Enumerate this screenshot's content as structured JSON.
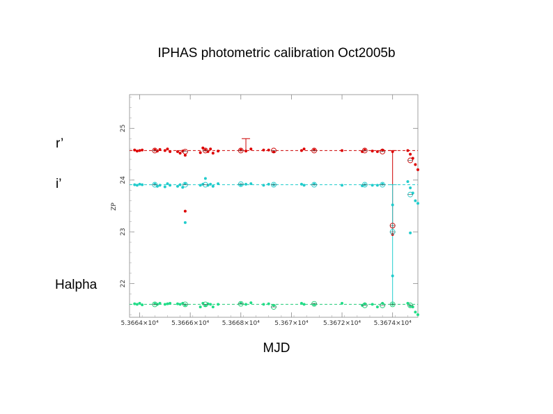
{
  "title": "IPHAS photometric calibration Oct2005b",
  "band_labels": {
    "r": "r’",
    "i": "i’",
    "halpha": "Halpha"
  },
  "xlabel": "MJD",
  "chart_data": {
    "type": "scatter",
    "title": "IPHAS photometric calibration Oct2005b",
    "xlabel": "MJD",
    "ylabel": "ZP",
    "xlim": [
      53663.6,
      53675.0
    ],
    "ylim": [
      21.35,
      25.65
    ],
    "x_ticks": [
      53664,
      53666,
      53668,
      53670,
      53672,
      53674
    ],
    "x_tick_labels": [
      "5.3664×10⁴",
      "5.3666×10⁴",
      "5.3668×10⁴",
      "5.367×10⁴",
      "5.3672×10⁴",
      "5.3674×10⁴"
    ],
    "y_ticks": [
      22,
      23,
      24,
      25
    ],
    "y_tick_labels": [
      "22",
      "23",
      "24",
      "25"
    ],
    "reference_lines": [
      {
        "band": "r'",
        "value": 24.57,
        "color": "#cc0000"
      },
      {
        "band": "i'",
        "value": 23.91,
        "color": "#22cccc"
      },
      {
        "band": "Halpha",
        "value": 21.6,
        "color": "#22cc77"
      }
    ],
    "series": [
      {
        "name": "r'",
        "color": "#dd0000",
        "x": [
          53663.8,
          53663.9,
          53664.0,
          53664.1,
          53664.6,
          53664.7,
          53664.8,
          53665.0,
          53665.1,
          53665.2,
          53665.5,
          53665.6,
          53665.7,
          53665.8,
          53666.4,
          53666.5,
          53666.6,
          53666.7,
          53666.8,
          53666.9,
          53667.1,
          53668.0,
          53668.2,
          53668.4,
          53668.9,
          53669.1,
          53669.3,
          53670.4,
          53670.5,
          53670.9,
          53672.0,
          53672.8,
          53672.9,
          53673.2,
          53673.4,
          53673.6,
          53674.0,
          53674.6,
          53674.7,
          53674.8,
          53674.9,
          53675.0
        ],
        "y": [
          24.58,
          24.56,
          24.57,
          24.58,
          24.58,
          24.56,
          24.59,
          24.57,
          24.6,
          24.55,
          24.55,
          24.52,
          24.56,
          24.48,
          24.53,
          24.62,
          24.58,
          24.55,
          24.6,
          24.52,
          24.56,
          24.58,
          24.56,
          24.6,
          24.58,
          24.58,
          24.55,
          24.57,
          24.6,
          24.58,
          24.57,
          24.55,
          24.58,
          24.56,
          24.55,
          24.58,
          24.55,
          24.57,
          24.5,
          24.42,
          24.3,
          24.2
        ]
      },
      {
        "name": "i'",
        "color": "#22cccc",
        "x": [
          53663.8,
          53663.9,
          53664.0,
          53664.1,
          53664.6,
          53664.7,
          53664.8,
          53665.0,
          53665.1,
          53665.2,
          53665.5,
          53665.6,
          53665.7,
          53665.8,
          53666.4,
          53666.5,
          53666.6,
          53666.7,
          53666.8,
          53666.9,
          53667.1,
          53668.0,
          53668.2,
          53668.4,
          53668.9,
          53669.1,
          53669.3,
          53670.4,
          53670.5,
          53670.9,
          53672.0,
          53672.8,
          53672.9,
          53673.2,
          53673.4,
          53673.6,
          53674.0,
          53674.6,
          53674.7,
          53674.8,
          53674.9,
          53675.0
        ],
        "y": [
          23.91,
          23.9,
          23.92,
          23.91,
          23.92,
          23.88,
          23.9,
          23.87,
          23.93,
          23.9,
          23.88,
          23.91,
          23.86,
          23.93,
          23.9,
          23.92,
          24.03,
          23.9,
          23.92,
          23.88,
          23.93,
          23.91,
          23.92,
          23.93,
          23.9,
          23.92,
          23.91,
          23.92,
          23.9,
          23.92,
          23.9,
          23.89,
          23.91,
          23.9,
          23.9,
          23.92,
          23.52,
          23.97,
          23.85,
          23.75,
          23.6,
          23.55
        ]
      },
      {
        "name": "Halpha",
        "color": "#22dd88",
        "x": [
          53663.8,
          53663.9,
          53664.0,
          53664.1,
          53664.6,
          53664.7,
          53664.8,
          53665.0,
          53665.1,
          53665.2,
          53665.5,
          53665.6,
          53665.7,
          53665.8,
          53666.4,
          53666.5,
          53666.6,
          53666.7,
          53666.8,
          53666.9,
          53667.1,
          53668.0,
          53668.2,
          53668.4,
          53668.9,
          53669.1,
          53669.3,
          53670.4,
          53670.5,
          53670.9,
          53672.0,
          53672.8,
          53672.9,
          53673.2,
          53673.4,
          53673.6,
          53674.0,
          53674.6,
          53674.7,
          53674.8,
          53674.9,
          53675.0
        ],
        "y": [
          21.61,
          21.6,
          21.62,
          21.59,
          21.61,
          21.6,
          21.62,
          21.6,
          21.61,
          21.62,
          21.61,
          21.6,
          21.62,
          21.59,
          21.55,
          21.62,
          21.58,
          21.61,
          21.6,
          21.55,
          21.6,
          21.62,
          21.6,
          21.63,
          21.6,
          21.61,
          21.58,
          21.62,
          21.6,
          21.6,
          21.62,
          21.58,
          21.61,
          21.6,
          21.55,
          21.62,
          21.6,
          21.62,
          21.57,
          21.55,
          21.45,
          21.4
        ]
      },
      {
        "name": "outliers",
        "color": "#dd0000",
        "x": [
          53665.8,
          53674.0
        ],
        "y": [
          23.4,
          22.95
        ]
      },
      {
        "name": "outliers-cyan",
        "color": "#22cccc",
        "x": [
          53665.8,
          53674.0,
          53674.7
        ],
        "y": [
          23.18,
          22.15,
          22.98
        ]
      }
    ],
    "calibration_points": {
      "r'": {
        "x": [
          53664.6,
          53665.8,
          53666.6,
          53668.0,
          53669.3,
          53670.9,
          53672.9,
          53673.6,
          53674.0,
          53674.7
        ],
        "y": [
          24.57,
          24.55,
          24.57,
          24.57,
          24.57,
          24.57,
          24.57,
          24.55,
          23.12,
          24.38
        ]
      },
      "i'": {
        "x": [
          53664.6,
          53665.8,
          53666.6,
          53668.0,
          53669.3,
          53670.9,
          53672.9,
          53673.6,
          53674.0,
          53674.7
        ],
        "y": [
          23.91,
          23.91,
          23.91,
          23.92,
          23.91,
          23.91,
          23.91,
          23.91,
          23.0,
          23.72
        ]
      },
      "Halpha": {
        "x": [
          53664.6,
          53665.8,
          53666.6,
          53668.0,
          53669.3,
          53670.9,
          53672.9,
          53673.6,
          53674.0,
          53674.7
        ],
        "y": [
          21.6,
          21.6,
          21.6,
          21.61,
          21.55,
          21.61,
          21.58,
          21.58,
          21.6,
          21.58
        ]
      }
    },
    "error_bars": [
      {
        "x": 53668.2,
        "ylow": 24.57,
        "yhigh": 24.8,
        "color": "#cc0000"
      },
      {
        "x": 53674.0,
        "ylow": 23.0,
        "yhigh": 24.57,
        "color": "#cc0000"
      },
      {
        "x": 53674.0,
        "ylow": 21.6,
        "yhigh": 23.91,
        "color": "#22cccc"
      }
    ],
    "grid": false,
    "legend": "none"
  }
}
